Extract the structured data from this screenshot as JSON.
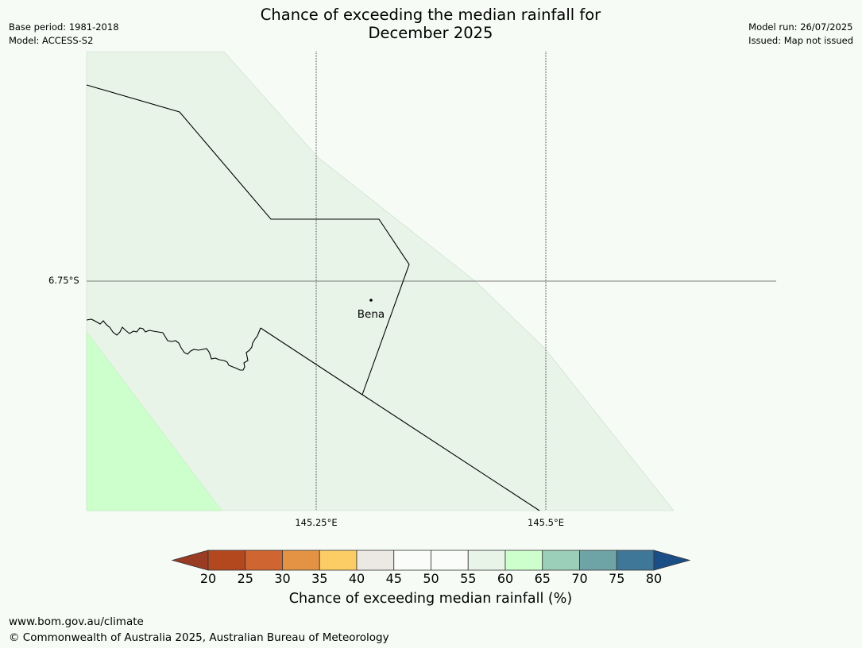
{
  "title_line1": "Chance of exceeding the median rainfall for",
  "title_line2": "December 2025",
  "meta_left": {
    "base_period": "Base period: 1981-2018",
    "model": "Model: ACCESS-S2"
  },
  "meta_right": {
    "model_run": "Model run: 26/07/2025",
    "issued": "Issued: Map not issued"
  },
  "map": {
    "lat_label": "6.75°S",
    "lon_labels": [
      "145.25°E",
      "145.5°E"
    ],
    "town": "Bena",
    "background_color": "#f6fbf6",
    "shading_colors": {
      "band_55_60": "#e8f4e8",
      "band_60_65": "#ccffcc"
    }
  },
  "colorbar": {
    "label": "Chance of exceeding median rainfall (%)",
    "ticks": [
      "20",
      "25",
      "30",
      "35",
      "40",
      "45",
      "50",
      "55",
      "60",
      "65",
      "70",
      "75",
      "80"
    ],
    "colors": [
      "#9a3b24",
      "#b3481f",
      "#cf6530",
      "#e39343",
      "#fdcd65",
      "#ece8e4",
      "#fafcfa",
      "#fafcfa",
      "#e8f4e8",
      "#ccffcc",
      "#9ccfb9",
      "#6fa4a6",
      "#3f7799",
      "#1b4e86"
    ],
    "extend": "both"
  },
  "footer": {
    "url": "www.bom.gov.au/climate",
    "copyright": "© Commonwealth of Australia 2025, Australian Bureau of Meteorology"
  }
}
